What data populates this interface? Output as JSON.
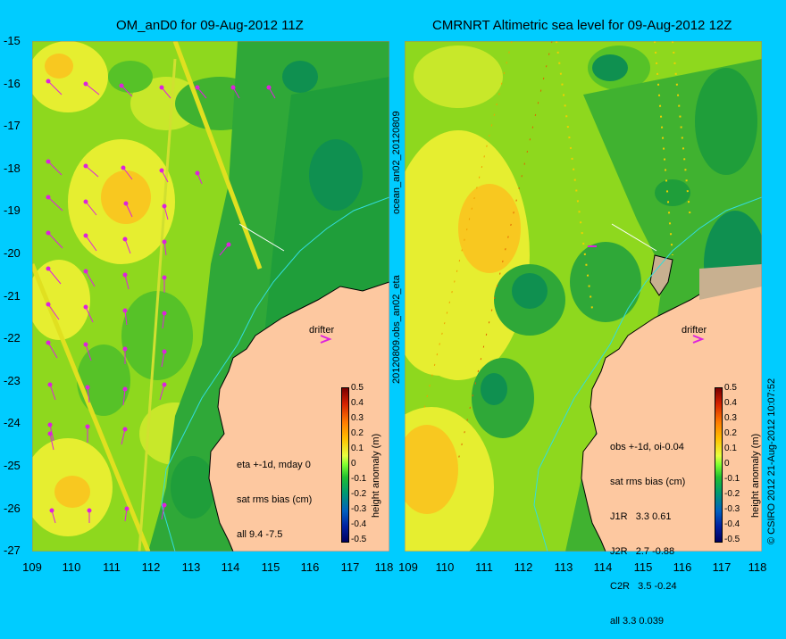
{
  "left": {
    "title": "OM_anD0 for 09-Aug-2012 11Z",
    "legend": [
      "eta +-1d, mday 0",
      "sat rms bias (cm)",
      "all 9.4 -7.5"
    ],
    "drifter_label": "drifter",
    "side_label": "20120809.obs_an02_eta",
    "side_label_top": "ocean_an02_20120809"
  },
  "right": {
    "title": "CMRNRT Altimetric sea level  for 09-Aug-2012 12Z",
    "legend": [
      "obs +-1d, oi-0.04",
      "sat rms bias (cm)",
      "J1R   3.3 0.61",
      "J2R   2.7 -0.88",
      "C2R   3.5 -0.24",
      "all 3.3 0.039"
    ],
    "drifter_label": "drifter",
    "credit": "© CSIRO 2012   21-Aug-2012 10:07:52"
  },
  "y_ticks": [
    "-15",
    "-16",
    "-17",
    "-18",
    "-19",
    "-20",
    "-21",
    "-22",
    "-23",
    "-24",
    "-25",
    "-26",
    "-27"
  ],
  "x_ticks": [
    "109",
    "110",
    "111",
    "112",
    "113",
    "114",
    "115",
    "116",
    "117",
    "118"
  ],
  "colorbar": {
    "ticks": [
      "0.5",
      "0.4",
      "0.3",
      "0.2",
      "0.1",
      "0",
      "-0.1",
      "-0.2",
      "-0.3",
      "-0.4",
      "-0.5"
    ],
    "label": "height anomaly (m)"
  },
  "colors": {
    "background": "#00ccff",
    "land": "#fdc8a0",
    "sea_mid": "#7ed61a",
    "arrow": "#dd22dd"
  }
}
